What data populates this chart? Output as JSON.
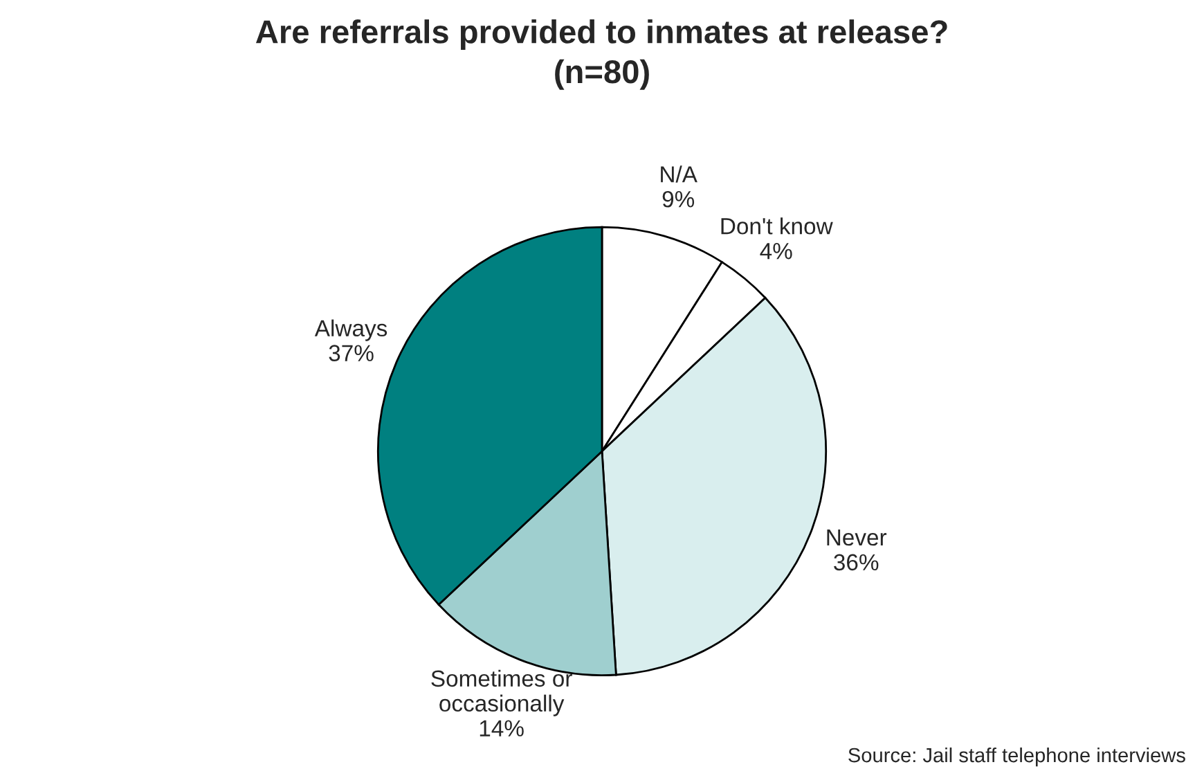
{
  "chart_data": {
    "type": "pie",
    "title": "Are referrals provided to inmates at release?\n(n=80)",
    "categories": [
      "N/A",
      "Don't know",
      "Never",
      "Sometimes or\noccasionally",
      "Always"
    ],
    "values": [
      9,
      4,
      36,
      14,
      37
    ],
    "value_labels": [
      "9%",
      "4%",
      "36%",
      "14%",
      "37%"
    ],
    "colors": [
      "#ffffff",
      "#ffffff",
      "#d9eeee",
      "#9fcfcf",
      "#008080"
    ],
    "annotations": [
      "Source: Jail staff telephone interviews"
    ]
  }
}
